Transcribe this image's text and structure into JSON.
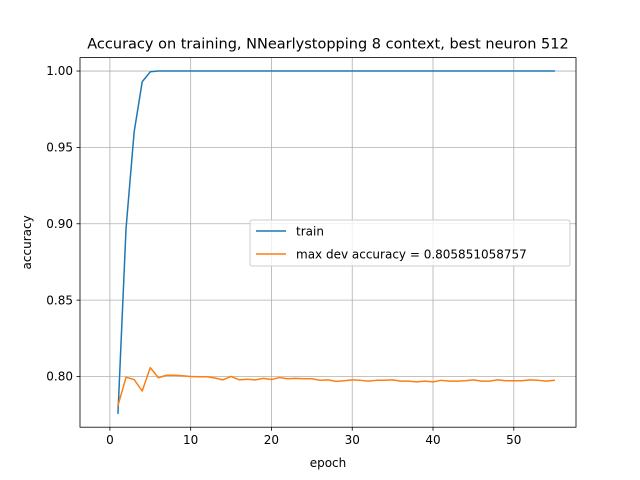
{
  "chart_data": {
    "type": "line",
    "title": "Accuracy on training, NNearlystopping 8 context, best neuron 512",
    "xlabel": "epoch",
    "ylabel": "accuracy",
    "xlim": [
      -3.7,
      57.7
    ],
    "ylim": [
      0.7668,
      1.0088
    ],
    "xticks": [
      0,
      10,
      20,
      30,
      40,
      50
    ],
    "yticks": [
      0.8,
      0.85,
      0.9,
      0.95,
      1.0
    ],
    "xtick_labels": [
      "0",
      "10",
      "20",
      "30",
      "40",
      "50"
    ],
    "ytick_labels": [
      "0.80",
      "0.85",
      "0.90",
      "0.95",
      "1.00"
    ],
    "grid": true,
    "legend_position": "center-right",
    "series": [
      {
        "name": "train",
        "color": "#1f77b4",
        "x": [
          1,
          2,
          3,
          4,
          5,
          6,
          7,
          8,
          9,
          10,
          11,
          12,
          13,
          14,
          15,
          16,
          17,
          18,
          19,
          20,
          21,
          22,
          23,
          24,
          25,
          26,
          27,
          28,
          29,
          30,
          31,
          32,
          33,
          34,
          35,
          36,
          37,
          38,
          39,
          40,
          41,
          42,
          43,
          44,
          45,
          46,
          47,
          48,
          49,
          50,
          51,
          52,
          53,
          54,
          55
        ],
        "values": [
          0.776,
          0.897,
          0.96,
          0.993,
          0.9995,
          1.0,
          1.0,
          1.0,
          1.0,
          1.0,
          1.0,
          1.0,
          1.0,
          1.0,
          1.0,
          1.0,
          1.0,
          1.0,
          1.0,
          1.0,
          1.0,
          1.0,
          1.0,
          1.0,
          1.0,
          1.0,
          1.0,
          1.0,
          1.0,
          1.0,
          1.0,
          1.0,
          1.0,
          1.0,
          1.0,
          1.0,
          1.0,
          1.0,
          1.0,
          1.0,
          1.0,
          1.0,
          1.0,
          1.0,
          1.0,
          1.0,
          1.0,
          1.0,
          1.0,
          1.0,
          1.0,
          1.0,
          1.0,
          1.0,
          1.0
        ]
      },
      {
        "name": "max dev accuracy = 0.805851058757",
        "color": "#ff7f0e",
        "x": [
          1,
          2,
          3,
          4,
          5,
          6,
          7,
          8,
          9,
          10,
          11,
          12,
          13,
          14,
          15,
          16,
          17,
          18,
          19,
          20,
          21,
          22,
          23,
          24,
          25,
          26,
          27,
          28,
          29,
          30,
          31,
          32,
          33,
          34,
          35,
          36,
          37,
          38,
          39,
          40,
          41,
          42,
          43,
          44,
          45,
          46,
          47,
          48,
          49,
          50,
          51,
          52,
          53,
          54,
          55
        ],
        "values": [
          0.781,
          0.7995,
          0.798,
          0.7905,
          0.8058,
          0.7992,
          0.8008,
          0.8008,
          0.8005,
          0.8,
          0.7998,
          0.7998,
          0.799,
          0.7978,
          0.8,
          0.7978,
          0.7982,
          0.7978,
          0.7988,
          0.798,
          0.7993,
          0.7985,
          0.7988,
          0.7985,
          0.7985,
          0.7975,
          0.7978,
          0.7968,
          0.7972,
          0.7978,
          0.7975,
          0.797,
          0.7975,
          0.7975,
          0.7978,
          0.797,
          0.797,
          0.7965,
          0.797,
          0.7965,
          0.7975,
          0.797,
          0.797,
          0.7972,
          0.7978,
          0.797,
          0.797,
          0.7978,
          0.7972,
          0.7972,
          0.7972,
          0.7978,
          0.7975,
          0.797,
          0.7975
        ]
      }
    ]
  }
}
